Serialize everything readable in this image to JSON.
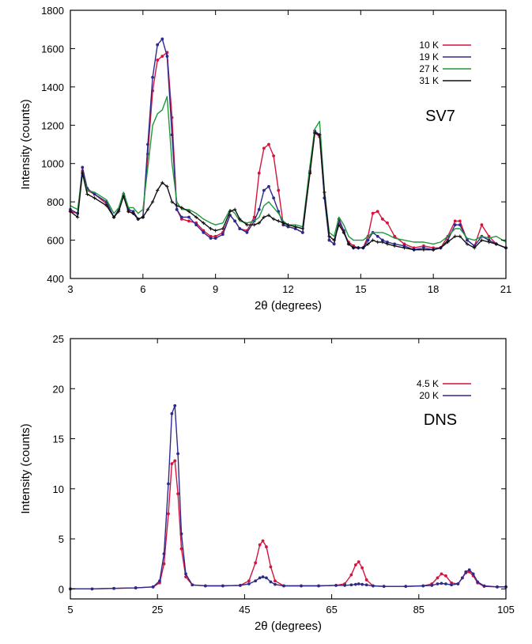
{
  "chart_data": [
    {
      "type": "line",
      "panel_label": "SV7",
      "xlabel": "2θ (degrees)",
      "ylabel": "Intensity (counts)",
      "xlim": [
        3,
        21
      ],
      "ylim": [
        400,
        1800
      ],
      "xticks": [
        3,
        6,
        9,
        12,
        15,
        18,
        21
      ],
      "yticks": [
        400,
        600,
        800,
        1000,
        1200,
        1400,
        1600,
        1800
      ],
      "grid": false,
      "legend_position": "top-right",
      "series": [
        {
          "name": "10 K",
          "color": "#d4143c",
          "marker": "dot",
          "x": [
            3,
            3.3,
            3.5,
            3.7,
            4,
            4.5,
            4.8,
            5,
            5.2,
            5.4,
            5.6,
            5.8,
            6,
            6.2,
            6.4,
            6.6,
            6.8,
            7,
            7.2,
            7.4,
            7.6,
            7.9,
            8.2,
            8.5,
            8.8,
            9,
            9.3,
            9.6,
            9.8,
            10,
            10.3,
            10.6,
            10.8,
            11,
            11.2,
            11.4,
            11.6,
            11.8,
            12,
            12.3,
            12.6,
            12.9,
            13.1,
            13.3,
            13.5,
            13.7,
            13.9,
            14.1,
            14.3,
            14.5,
            14.7,
            14.9,
            15.1,
            15.3,
            15.5,
            15.7,
            15.9,
            16.1,
            16.4,
            16.8,
            17.2,
            17.6,
            18,
            18.3,
            18.6,
            18.9,
            19.1,
            19.4,
            19.7,
            20,
            20.3,
            20.6,
            21
          ],
          "y": [
            750,
            740,
            960,
            860,
            840,
            790,
            720,
            760,
            830,
            750,
            740,
            710,
            720,
            1050,
            1380,
            1540,
            1560,
            1580,
            1240,
            760,
            710,
            700,
            690,
            650,
            620,
            620,
            640,
            730,
            700,
            660,
            650,
            720,
            950,
            1080,
            1100,
            1040,
            860,
            680,
            670,
            660,
            640,
            950,
            1160,
            1140,
            820,
            600,
            580,
            700,
            640,
            590,
            570,
            560,
            560,
            620,
            740,
            750,
            710,
            690,
            620,
            580,
            560,
            570,
            560,
            560,
            620,
            700,
            700,
            600,
            570,
            680,
            620,
            580,
            560
          ]
        },
        {
          "name": "19 K",
          "color": "#2e2a8c",
          "marker": "dot",
          "x": [
            3,
            3.3,
            3.5,
            3.7,
            4,
            4.5,
            4.8,
            5,
            5.2,
            5.4,
            5.6,
            5.8,
            6,
            6.2,
            6.4,
            6.6,
            6.8,
            7,
            7.2,
            7.4,
            7.6,
            7.9,
            8.2,
            8.5,
            8.8,
            9,
            9.3,
            9.6,
            9.8,
            10,
            10.3,
            10.6,
            10.8,
            11,
            11.2,
            11.4,
            11.6,
            11.8,
            12,
            12.3,
            12.6,
            12.9,
            13.1,
            13.3,
            13.5,
            13.7,
            13.9,
            14.1,
            14.3,
            14.5,
            14.7,
            14.9,
            15.1,
            15.3,
            15.5,
            15.7,
            15.9,
            16.1,
            16.4,
            16.8,
            17.2,
            17.6,
            18,
            18.3,
            18.6,
            18.9,
            19.1,
            19.4,
            19.7,
            20,
            20.3,
            20.6,
            21
          ],
          "y": [
            760,
            740,
            980,
            870,
            840,
            800,
            720,
            760,
            840,
            760,
            750,
            710,
            720,
            1100,
            1450,
            1620,
            1650,
            1560,
            1150,
            760,
            720,
            720,
            680,
            640,
            610,
            610,
            630,
            730,
            700,
            660,
            640,
            700,
            760,
            860,
            880,
            820,
            750,
            680,
            670,
            660,
            640,
            960,
            1170,
            1150,
            820,
            600,
            580,
            710,
            650,
            580,
            560,
            560,
            560,
            600,
            640,
            620,
            600,
            590,
            580,
            570,
            550,
            560,
            550,
            560,
            600,
            680,
            680,
            600,
            570,
            620,
            600,
            580,
            560
          ]
        },
        {
          "name": "27 K",
          "color": "#1f9a3a",
          "marker": "none",
          "x": [
            3,
            3.3,
            3.5,
            3.7,
            4,
            4.5,
            4.8,
            5,
            5.2,
            5.4,
            5.6,
            5.8,
            6,
            6.2,
            6.4,
            6.6,
            6.8,
            7,
            7.2,
            7.4,
            7.6,
            7.9,
            8.2,
            8.5,
            8.8,
            9,
            9.3,
            9.6,
            9.8,
            10,
            10.3,
            10.6,
            10.8,
            11,
            11.2,
            11.4,
            11.6,
            11.8,
            12,
            12.3,
            12.6,
            12.9,
            13.1,
            13.3,
            13.5,
            13.7,
            13.9,
            14.1,
            14.3,
            14.5,
            14.7,
            14.9,
            15.1,
            15.3,
            15.5,
            15.7,
            15.9,
            16.1,
            16.4,
            16.8,
            17.2,
            17.6,
            18,
            18.3,
            18.6,
            18.9,
            19.1,
            19.4,
            19.7,
            20,
            20.3,
            20.6,
            21
          ],
          "y": [
            780,
            760,
            950,
            860,
            850,
            810,
            740,
            770,
            850,
            770,
            770,
            740,
            760,
            980,
            1200,
            1260,
            1280,
            1350,
            1000,
            800,
            760,
            760,
            740,
            710,
            690,
            680,
            690,
            760,
            740,
            700,
            690,
            700,
            720,
            780,
            800,
            770,
            740,
            700,
            680,
            680,
            670,
            990,
            1180,
            1220,
            860,
            640,
            620,
            720,
            680,
            620,
            600,
            600,
            600,
            620,
            640,
            640,
            640,
            630,
            610,
            600,
            590,
            590,
            580,
            590,
            620,
            660,
            660,
            610,
            600,
            620,
            610,
            620,
            590
          ]
        },
        {
          "name": "31 K",
          "color": "#111111",
          "marker": "cross",
          "x": [
            3,
            3.3,
            3.5,
            3.7,
            4,
            4.5,
            4.8,
            5,
            5.2,
            5.4,
            5.6,
            5.8,
            6,
            6.2,
            6.4,
            6.6,
            6.8,
            7,
            7.2,
            7.4,
            7.6,
            7.9,
            8.2,
            8.5,
            8.8,
            9,
            9.3,
            9.6,
            9.8,
            10,
            10.3,
            10.6,
            10.8,
            11,
            11.2,
            11.4,
            11.6,
            11.8,
            12,
            12.3,
            12.6,
            12.9,
            13.1,
            13.3,
            13.5,
            13.7,
            13.9,
            14.1,
            14.3,
            14.5,
            14.7,
            14.9,
            15.1,
            15.3,
            15.5,
            15.7,
            15.9,
            16.1,
            16.4,
            16.8,
            17.2,
            17.6,
            18,
            18.3,
            18.6,
            18.9,
            19.1,
            19.4,
            19.7,
            20,
            20.3,
            20.6,
            21
          ],
          "y": [
            750,
            720,
            950,
            840,
            820,
            780,
            720,
            750,
            830,
            750,
            740,
            710,
            720,
            760,
            800,
            860,
            900,
            880,
            800,
            780,
            770,
            750,
            720,
            690,
            660,
            650,
            660,
            750,
            760,
            710,
            680,
            680,
            690,
            720,
            730,
            710,
            700,
            690,
            680,
            670,
            660,
            950,
            1160,
            1150,
            850,
            620,
            600,
            680,
            640,
            580,
            560,
            560,
            560,
            580,
            600,
            590,
            590,
            580,
            570,
            560,
            550,
            550,
            550,
            560,
            590,
            620,
            620,
            580,
            560,
            600,
            590,
            580,
            560
          ]
        }
      ]
    },
    {
      "type": "line",
      "panel_label": "DNS",
      "xlabel": "2θ (degrees)",
      "ylabel": "Intensity (counts)",
      "xlim": [
        5,
        105
      ],
      "ylim": [
        -1,
        25
      ],
      "xticks": [
        5,
        25,
        45,
        65,
        85,
        105
      ],
      "yticks": [
        0,
        5,
        10,
        15,
        20,
        25
      ],
      "grid": false,
      "legend_position": "top-right",
      "series": [
        {
          "name": "4.5 K",
          "color": "#d4143c",
          "marker": "dot",
          "x": [
            5,
            10,
            15,
            20,
            24,
            25.5,
            26.5,
            27.5,
            28.3,
            29,
            29.7,
            30.5,
            31.5,
            33,
            36,
            40,
            44,
            46,
            47.5,
            48.5,
            49.2,
            50,
            51,
            52,
            54,
            58,
            62,
            66,
            68,
            69.5,
            70.5,
            71.2,
            72,
            73,
            74.5,
            77,
            82,
            86,
            88,
            89.3,
            90.2,
            91.2,
            92.5,
            94,
            95,
            95.8,
            96.6,
            97.5,
            98.5,
            100,
            103,
            105
          ],
          "y": [
            0,
            0,
            0.05,
            0.1,
            0.2,
            0.6,
            2.5,
            7.5,
            12.5,
            12.8,
            9.5,
            4,
            1.2,
            0.4,
            0.3,
            0.3,
            0.35,
            0.8,
            2.6,
            4.4,
            4.8,
            4.2,
            2.2,
            0.8,
            0.3,
            0.3,
            0.3,
            0.35,
            0.5,
            1.4,
            2.4,
            2.7,
            2.1,
            0.9,
            0.3,
            0.25,
            0.25,
            0.3,
            0.5,
            1.1,
            1.5,
            1.3,
            0.6,
            0.5,
            1.1,
            1.6,
            1.7,
            1.3,
            0.6,
            0.25,
            0.2,
            0.2
          ]
        },
        {
          "name": "20 K",
          "color": "#2e2a8c",
          "marker": "dot",
          "x": [
            5,
            10,
            15,
            20,
            24,
            25.5,
            26.5,
            27.5,
            28.3,
            29,
            29.7,
            30.5,
            31.5,
            33,
            36,
            40,
            44,
            46,
            47.5,
            48.5,
            49.2,
            50,
            51,
            52,
            54,
            58,
            62,
            66,
            68,
            69.5,
            70.5,
            71.2,
            72,
            73,
            74.5,
            77,
            82,
            86,
            88,
            89.3,
            90.2,
            91.2,
            92.5,
            94,
            95,
            95.8,
            96.6,
            97.5,
            98.5,
            100,
            103,
            105
          ],
          "y": [
            0,
            0,
            0.05,
            0.1,
            0.2,
            0.8,
            3.5,
            10.5,
            17.5,
            18.3,
            13.5,
            5.5,
            1.5,
            0.4,
            0.3,
            0.3,
            0.35,
            0.5,
            0.8,
            1.1,
            1.2,
            1.1,
            0.7,
            0.45,
            0.3,
            0.3,
            0.3,
            0.35,
            0.35,
            0.4,
            0.45,
            0.5,
            0.45,
            0.4,
            0.3,
            0.25,
            0.25,
            0.3,
            0.35,
            0.5,
            0.55,
            0.5,
            0.4,
            0.5,
            1.1,
            1.7,
            1.9,
            1.5,
            0.7,
            0.3,
            0.2,
            0.2
          ]
        }
      ]
    }
  ]
}
